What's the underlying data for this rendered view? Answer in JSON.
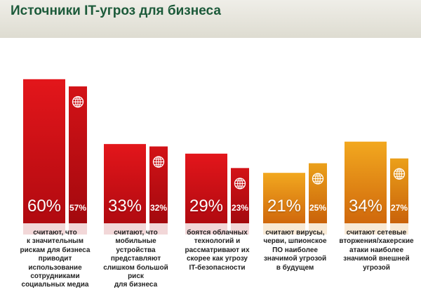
{
  "header": {
    "title": "Источники IT-угроз для бизнеса"
  },
  "colors": {
    "header_bg": "#e4e2d8",
    "title": "#1c5a3a",
    "red_top": "#e01a1e",
    "red_bottom": "#b50c12",
    "orange_top": "#f0a41c",
    "orange_bottom": "#d46a0c",
    "globe_icon": "#ffffff"
  },
  "chart_data": {
    "type": "bar",
    "icon": "globe-icon",
    "ylim": [
      0,
      60
    ],
    "groups": [
      {
        "big_value": 60,
        "big_label": "60%",
        "small_value": 57,
        "small_label": "57%",
        "color": "red",
        "description": [
          "считают, что",
          "к значительным",
          "рискам для бизнеса",
          "приводит",
          "использование",
          "сотрудниками",
          "социальных медиа"
        ]
      },
      {
        "big_value": 33,
        "big_label": "33%",
        "small_value": 32,
        "small_label": "32%",
        "color": "red",
        "description": [
          "считают, что",
          "мобильные",
          "устройства",
          "представляют",
          "слишком большой",
          "риск",
          "для бизнеса"
        ]
      },
      {
        "big_value": 29,
        "big_label": "29%",
        "small_value": 23,
        "small_label": "23%",
        "color": "red",
        "description": [
          "боятся облачных",
          "технологий и",
          "рассматривают их",
          "скорее как угрозу",
          "IT-безопасности"
        ]
      },
      {
        "big_value": 21,
        "big_label": "21%",
        "small_value": 25,
        "small_label": "25%",
        "color": "orange",
        "description": [
          "считают вирусы,",
          "черви, шпионское",
          "ПО наиболее",
          "значимой угрозой",
          "в будущем"
        ]
      },
      {
        "big_value": 34,
        "big_label": "34%",
        "small_value": 27,
        "small_label": "27%",
        "color": "orange",
        "description": [
          "считают сетевые",
          "вторжения/хакерские",
          "атаки наиболее",
          "значимой внешней",
          "угрозой"
        ]
      }
    ]
  }
}
